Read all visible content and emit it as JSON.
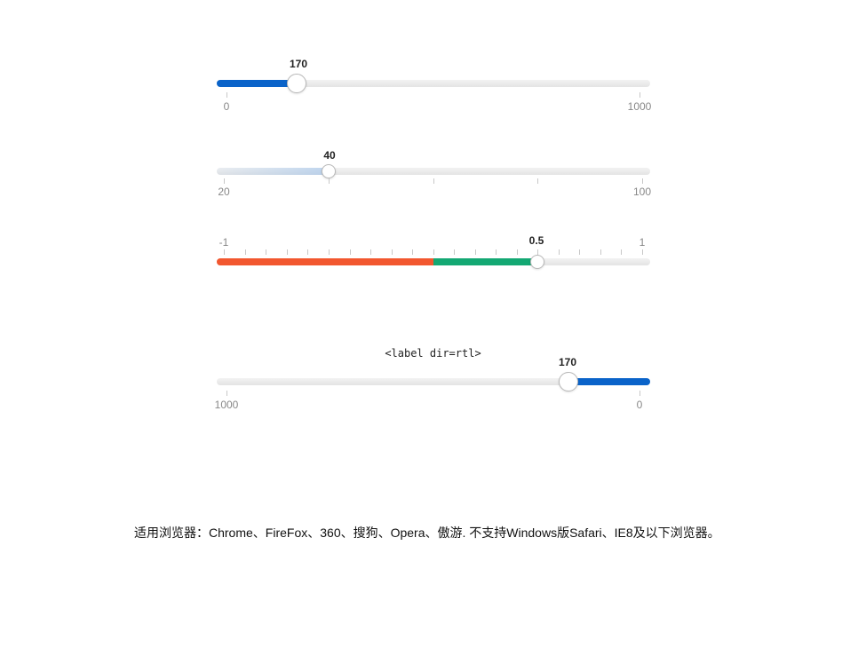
{
  "sliders": [
    {
      "id": "range-blue",
      "value": "170",
      "min_label": "0",
      "max_label": "1000",
      "fill_fraction": 0.17,
      "fill_color": "#0a63c9"
    },
    {
      "id": "range-gradient",
      "value": "40",
      "min_label": "20",
      "max_label": "100",
      "fill_fraction": 0.25
    },
    {
      "id": "range-red-green",
      "value": "0.5",
      "min_label": "-1",
      "max_label": "1",
      "fill_fraction": 0.75,
      "colors": {
        "negative": "#f2572f",
        "positive": "#13a873"
      }
    },
    {
      "id": "range-rtl",
      "value": "170",
      "min_label": "0",
      "max_label": "1000",
      "fill_fraction": 0.17,
      "direction": "rtl",
      "fill_color": "#0a63c9"
    }
  ],
  "rtl_caption": "<label dir=rtl>",
  "footer_text": "适用浏览器：Chrome、FireFox、360、搜狗、Opera、傲游. 不支持Windows版Safari、IE8及以下浏览器。"
}
